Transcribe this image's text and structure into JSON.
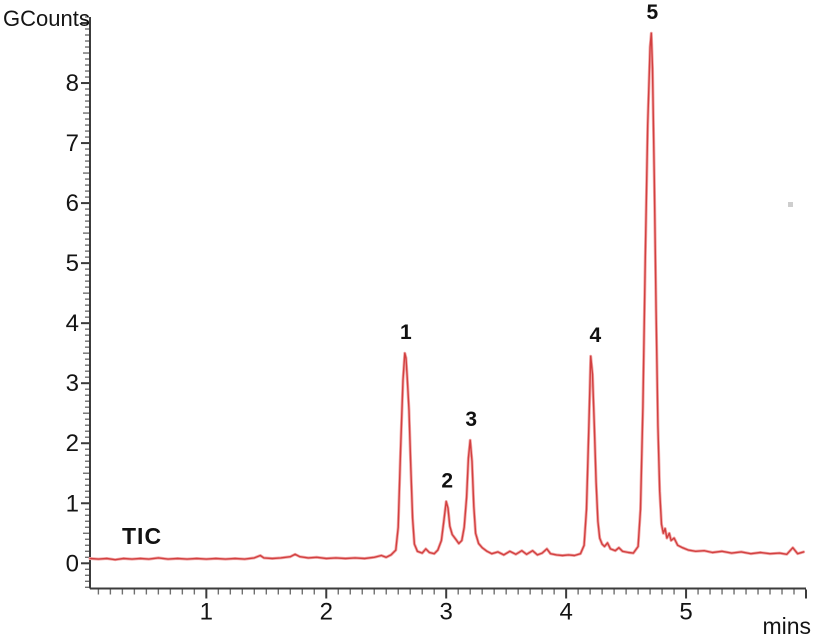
{
  "figure": {
    "background": "#ffffff"
  },
  "colors": {
    "trace_core": "#d24040",
    "trace_halo": "#f2aaaa",
    "axis_line": "#3c3c3c",
    "tick_minor": "#707070",
    "tick_major": "#3c3c3c",
    "text": "#141414",
    "artifact_speck": "#b9b9b9"
  },
  "chart_data": {
    "type": "line",
    "title": "",
    "xlabel": "mins",
    "ylabel": "GCounts",
    "trace_name": "TIC",
    "legend_position": "none",
    "grid": false,
    "xlim": [
      0.03,
      6.0
    ],
    "ylim": [
      -0.42,
      9.1
    ],
    "x_ticks_major": [
      1,
      2,
      3,
      4,
      5
    ],
    "y_ticks_major": [
      0,
      1,
      2,
      3,
      4,
      5,
      6,
      7,
      8
    ],
    "minor_tick_step": 0.1,
    "peaks": [
      {
        "label": "1",
        "t": 2.655,
        "height": 3.5
      },
      {
        "label": "2",
        "t": 3.0,
        "height": 1.03
      },
      {
        "label": "3",
        "t": 3.2,
        "height": 2.05
      },
      {
        "label": "4",
        "t": 4.21,
        "height": 3.45
      },
      {
        "label": "5",
        "t": 4.71,
        "height": 8.83
      }
    ],
    "points": [
      [
        0.03,
        0.08
      ],
      [
        0.1,
        0.07
      ],
      [
        0.17,
        0.08
      ],
      [
        0.24,
        0.06
      ],
      [
        0.31,
        0.08
      ],
      [
        0.38,
        0.07
      ],
      [
        0.45,
        0.08
      ],
      [
        0.52,
        0.07
      ],
      [
        0.6,
        0.09
      ],
      [
        0.68,
        0.07
      ],
      [
        0.76,
        0.08
      ],
      [
        0.84,
        0.07
      ],
      [
        0.92,
        0.08
      ],
      [
        1.0,
        0.07
      ],
      [
        1.08,
        0.08
      ],
      [
        1.16,
        0.07
      ],
      [
        1.24,
        0.08
      ],
      [
        1.32,
        0.07
      ],
      [
        1.4,
        0.09
      ],
      [
        1.45,
        0.13
      ],
      [
        1.48,
        0.09
      ],
      [
        1.55,
        0.08
      ],
      [
        1.62,
        0.09
      ],
      [
        1.7,
        0.11
      ],
      [
        1.74,
        0.15
      ],
      [
        1.78,
        0.11
      ],
      [
        1.85,
        0.09
      ],
      [
        1.92,
        0.1
      ],
      [
        2.0,
        0.08
      ],
      [
        2.08,
        0.09
      ],
      [
        2.16,
        0.08
      ],
      [
        2.24,
        0.09
      ],
      [
        2.32,
        0.08
      ],
      [
        2.4,
        0.1
      ],
      [
        2.46,
        0.13
      ],
      [
        2.5,
        0.1
      ],
      [
        2.54,
        0.14
      ],
      [
        2.58,
        0.22
      ],
      [
        2.6,
        0.6
      ],
      [
        2.62,
        1.9
      ],
      [
        2.64,
        3.05
      ],
      [
        2.655,
        3.5
      ],
      [
        2.665,
        3.42
      ],
      [
        2.675,
        3.1
      ],
      [
        2.69,
        2.55
      ],
      [
        2.705,
        1.6
      ],
      [
        2.72,
        0.75
      ],
      [
        2.735,
        0.32
      ],
      [
        2.76,
        0.2
      ],
      [
        2.8,
        0.17
      ],
      [
        2.83,
        0.24
      ],
      [
        2.86,
        0.18
      ],
      [
        2.9,
        0.16
      ],
      [
        2.93,
        0.22
      ],
      [
        2.96,
        0.38
      ],
      [
        2.98,
        0.7
      ],
      [
        3.0,
        1.03
      ],
      [
        3.015,
        0.92
      ],
      [
        3.03,
        0.62
      ],
      [
        3.05,
        0.48
      ],
      [
        3.08,
        0.4
      ],
      [
        3.105,
        0.33
      ],
      [
        3.13,
        0.38
      ],
      [
        3.15,
        0.6
      ],
      [
        3.17,
        1.1
      ],
      [
        3.185,
        1.75
      ],
      [
        3.2,
        2.05
      ],
      [
        3.215,
        1.7
      ],
      [
        3.23,
        0.95
      ],
      [
        3.245,
        0.5
      ],
      [
        3.27,
        0.33
      ],
      [
        3.3,
        0.26
      ],
      [
        3.34,
        0.2
      ],
      [
        3.38,
        0.16
      ],
      [
        3.43,
        0.19
      ],
      [
        3.48,
        0.14
      ],
      [
        3.53,
        0.2
      ],
      [
        3.58,
        0.15
      ],
      [
        3.63,
        0.21
      ],
      [
        3.67,
        0.15
      ],
      [
        3.72,
        0.21
      ],
      [
        3.76,
        0.14
      ],
      [
        3.8,
        0.17
      ],
      [
        3.84,
        0.24
      ],
      [
        3.87,
        0.16
      ],
      [
        3.92,
        0.14
      ],
      [
        3.97,
        0.13
      ],
      [
        4.02,
        0.14
      ],
      [
        4.07,
        0.13
      ],
      [
        4.12,
        0.16
      ],
      [
        4.15,
        0.3
      ],
      [
        4.17,
        0.9
      ],
      [
        4.19,
        2.3
      ],
      [
        4.205,
        3.45
      ],
      [
        4.22,
        3.15
      ],
      [
        4.235,
        2.3
      ],
      [
        4.25,
        1.35
      ],
      [
        4.265,
        0.7
      ],
      [
        4.28,
        0.42
      ],
      [
        4.3,
        0.32
      ],
      [
        4.32,
        0.28
      ],
      [
        4.345,
        0.34
      ],
      [
        4.37,
        0.24
      ],
      [
        4.41,
        0.21
      ],
      [
        4.44,
        0.26
      ],
      [
        4.47,
        0.2
      ],
      [
        4.52,
        0.18
      ],
      [
        4.56,
        0.17
      ],
      [
        4.6,
        0.28
      ],
      [
        4.62,
        0.9
      ],
      [
        4.64,
        2.6
      ],
      [
        4.66,
        5.1
      ],
      [
        4.68,
        7.3
      ],
      [
        4.7,
        8.6
      ],
      [
        4.71,
        8.83
      ],
      [
        4.72,
        8.25
      ],
      [
        4.735,
        6.4
      ],
      [
        4.75,
        4.2
      ],
      [
        4.765,
        2.3
      ],
      [
        4.78,
        1.2
      ],
      [
        4.795,
        0.65
      ],
      [
        4.81,
        0.5
      ],
      [
        4.825,
        0.58
      ],
      [
        4.84,
        0.42
      ],
      [
        4.86,
        0.5
      ],
      [
        4.875,
        0.38
      ],
      [
        4.9,
        0.42
      ],
      [
        4.93,
        0.3
      ],
      [
        4.97,
        0.26
      ],
      [
        5.02,
        0.22
      ],
      [
        5.08,
        0.2
      ],
      [
        5.15,
        0.21
      ],
      [
        5.22,
        0.18
      ],
      [
        5.3,
        0.2
      ],
      [
        5.38,
        0.17
      ],
      [
        5.46,
        0.19
      ],
      [
        5.54,
        0.16
      ],
      [
        5.62,
        0.18
      ],
      [
        5.7,
        0.16
      ],
      [
        5.78,
        0.17
      ],
      [
        5.84,
        0.15
      ],
      [
        5.89,
        0.26
      ],
      [
        5.93,
        0.16
      ],
      [
        5.98,
        0.19
      ]
    ]
  }
}
